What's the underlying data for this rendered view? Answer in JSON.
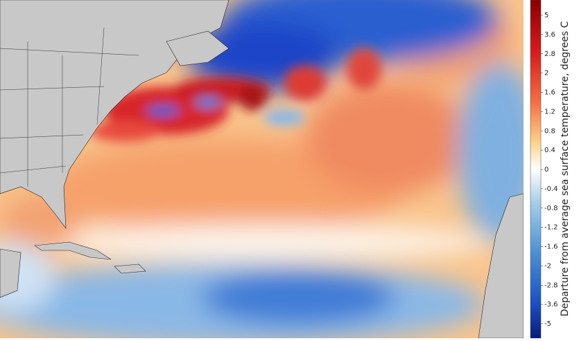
{
  "colorbar": {
    "label": "Departure from average sea surface temperature, degrees C",
    "ticks": [
      5,
      3.6,
      2.8,
      2,
      1.6,
      1.2,
      0.8,
      0.4,
      0,
      -0.4,
      -0.8,
      -1.2,
      -1.6,
      -2,
      -2.8,
      -3.6,
      -5
    ]
  }
}
